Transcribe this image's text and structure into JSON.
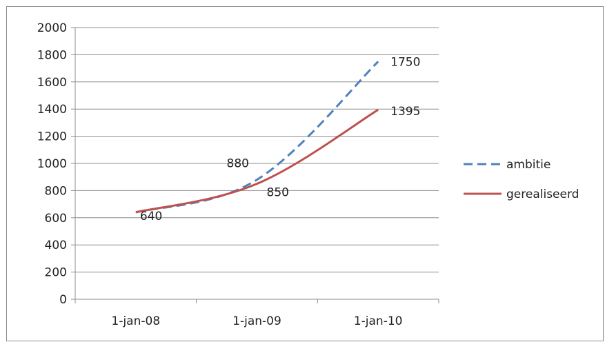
{
  "chart_data": {
    "type": "line",
    "title": "",
    "xlabel": "",
    "ylabel": "",
    "categories": [
      "1-jan-08",
      "1-jan-09",
      "1-jan-10"
    ],
    "ylim": [
      0,
      2000
    ],
    "y_ticks": [
      0,
      200,
      400,
      600,
      800,
      1000,
      1200,
      1400,
      1600,
      1800,
      2000
    ],
    "grid": true,
    "legend_position": "right",
    "series": [
      {
        "name": "ambitie",
        "color": "#4F81BD",
        "style": "dashed",
        "values": [
          640,
          880,
          1750
        ]
      },
      {
        "name": "gerealiseerd",
        "color": "#C0504D",
        "style": "solid",
        "values": [
          640,
          850,
          1395
        ]
      }
    ],
    "data_labels": [
      {
        "series": "both",
        "category": "1-jan-08",
        "text": "640"
      },
      {
        "series": "ambitie",
        "category": "1-jan-09",
        "text": "880"
      },
      {
        "series": "gerealiseerd",
        "category": "1-jan-09",
        "text": "850"
      },
      {
        "series": "ambitie",
        "category": "1-jan-10",
        "text": "1750"
      },
      {
        "series": "gerealiseerd",
        "category": "1-jan-10",
        "text": "1395"
      }
    ]
  }
}
